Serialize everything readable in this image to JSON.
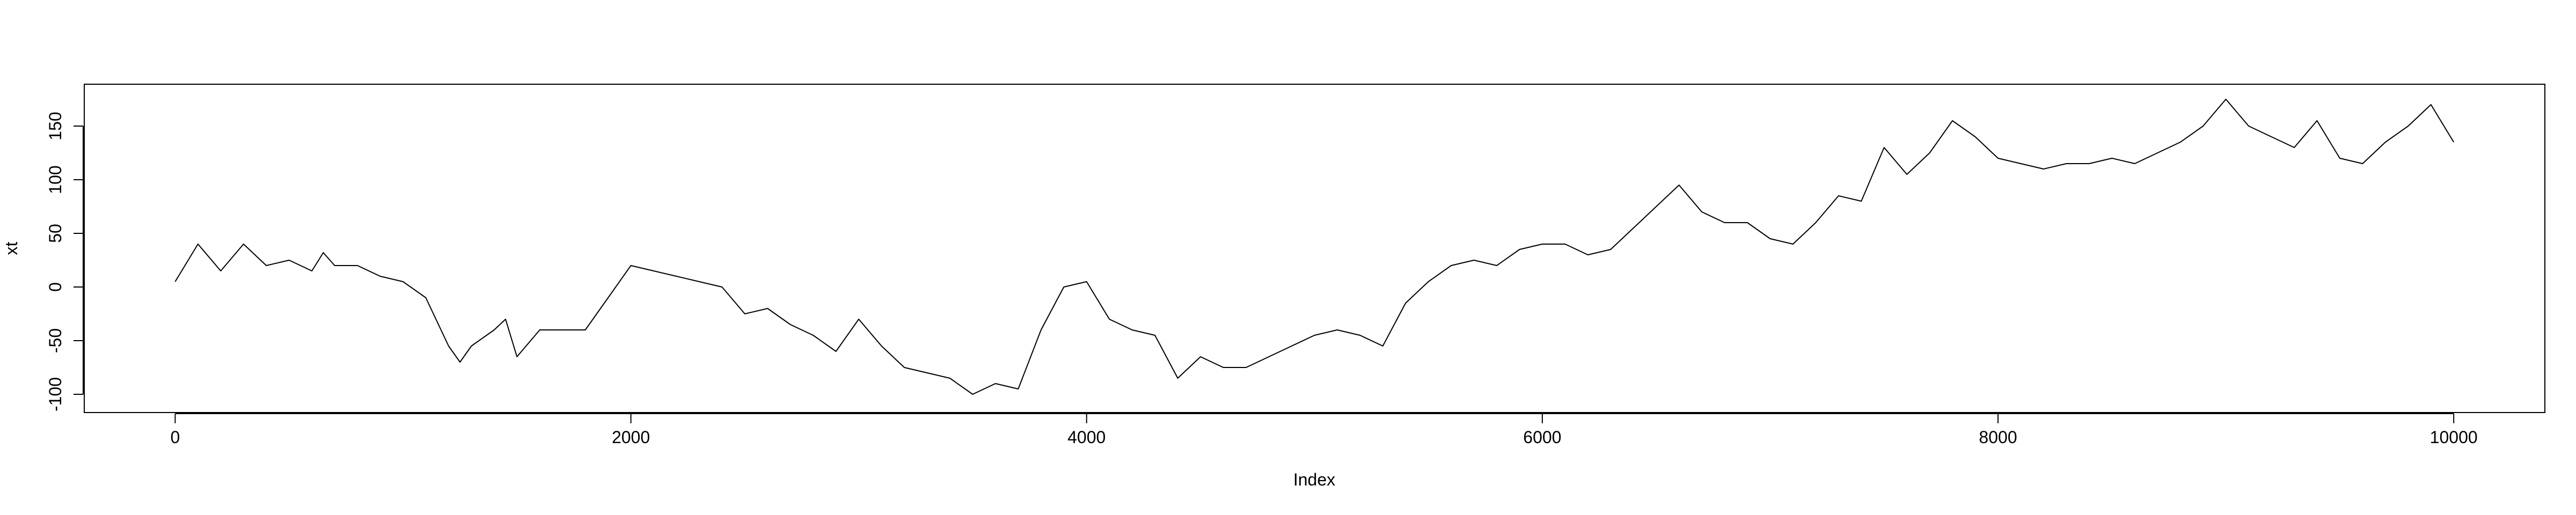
{
  "chart_data": {
    "type": "line",
    "x_label": "Index",
    "y_label": "xt",
    "x": [
      0,
      100,
      200,
      300,
      400,
      500,
      600,
      650,
      700,
      800,
      900,
      1000,
      1100,
      1200,
      1250,
      1300,
      1400,
      1450,
      1500,
      1600,
      1700,
      1800,
      1900,
      2000,
      2100,
      2200,
      2300,
      2400,
      2500,
      2600,
      2700,
      2800,
      2900,
      3000,
      3100,
      3200,
      3300,
      3400,
      3500,
      3600,
      3700,
      3800,
      3900,
      4000,
      4100,
      4200,
      4300,
      4400,
      4500,
      4600,
      4700,
      4800,
      4900,
      5000,
      5100,
      5200,
      5300,
      5400,
      5500,
      5600,
      5700,
      5800,
      5900,
      6000,
      6100,
      6200,
      6300,
      6400,
      6500,
      6600,
      6700,
      6800,
      6900,
      7000,
      7100,
      7200,
      7300,
      7400,
      7500,
      7600,
      7700,
      7800,
      7900,
      8000,
      8100,
      8200,
      8300,
      8400,
      8500,
      8600,
      8700,
      8800,
      8900,
      9000,
      9100,
      9200,
      9300,
      9400,
      9500,
      9600,
      9700,
      9800,
      9900,
      10000
    ],
    "series": [
      {
        "name": "xt",
        "color": "#000000",
        "values": [
          5,
          40,
          15,
          40,
          20,
          25,
          15,
          32,
          20,
          20,
          10,
          5,
          -10,
          -55,
          -70,
          -55,
          -40,
          -30,
          -65,
          -40,
          -40,
          -40,
          -10,
          20,
          15,
          10,
          5,
          0,
          -25,
          -20,
          -35,
          -45,
          -60,
          -30,
          -55,
          -75,
          -80,
          -85,
          -100,
          -90,
          -95,
          -40,
          0,
          5,
          -30,
          -40,
          -45,
          -85,
          -65,
          -75,
          -75,
          -65,
          -55,
          -45,
          -40,
          -45,
          -55,
          -15,
          5,
          20,
          25,
          20,
          35,
          40,
          40,
          30,
          35,
          55,
          75,
          95,
          70,
          60,
          60,
          45,
          40,
          60,
          85,
          80,
          130,
          105,
          125,
          155,
          140,
          120,
          115,
          110,
          115,
          115,
          120,
          115,
          125,
          135,
          150,
          175,
          150,
          140,
          130,
          155,
          120,
          115,
          135,
          150,
          170,
          135
        ]
      }
    ],
    "xlim": [
      -399,
      10400
    ],
    "ylim": [
      -117,
      189
    ],
    "xticks": [
      0,
      2000,
      4000,
      6000,
      8000,
      10000
    ],
    "yticks": [
      -100,
      -50,
      0,
      50,
      100,
      150
    ]
  }
}
